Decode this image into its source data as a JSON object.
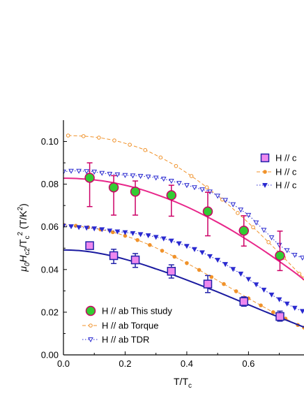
{
  "chart_data": {
    "type": "scatter",
    "xlabel": "T/T",
    "xlabel_sub": "c",
    "ylabel_parts": [
      "μ",
      "0",
      "H",
      "c2",
      "/T",
      "c",
      "2",
      " (T/K",
      "2",
      ")"
    ],
    "xlim": [
      0.0,
      0.78
    ],
    "ylim": [
      0.0,
      0.11
    ],
    "x_ticks": [
      "0.0",
      "0.2",
      "0.4",
      "0.6"
    ],
    "x_tick_values": [
      0.0,
      0.2,
      0.4,
      0.6
    ],
    "y_ticks": [
      "0.00",
      "0.02",
      "0.04",
      "0.06",
      "0.08",
      "0.10"
    ],
    "y_tick_values": [
      0.0,
      0.02,
      0.04,
      0.06,
      0.08,
      0.1
    ],
    "colors": {
      "ab_study_fill": "#33cc33",
      "ab_study_edge": "#cc0066",
      "ab_fit": "#e8268a",
      "c_study_fill": "#ee88ee",
      "c_study_edge": "#2222aa",
      "c_fit": "#1a1aa0",
      "torque": "#f0922a",
      "tdr": "#2a2ad0"
    },
    "legend_left": [
      {
        "label": "H // ab This study",
        "marker": "circle"
      },
      {
        "label": "H // ab Torque",
        "marker": "open-circle-dash"
      },
      {
        "label": "H // ab TDR",
        "marker": "open-triangle-dot"
      }
    ],
    "legend_right": [
      {
        "label": "H // c",
        "marker": "square"
      },
      {
        "label": "H // c",
        "marker": "filled-circle-dash"
      },
      {
        "label": "H // c",
        "marker": "filled-triangle-dot"
      }
    ],
    "series": [
      {
        "name": "H // ab This study",
        "style": "ab_study",
        "points": [
          {
            "x": 0.085,
            "y": 0.083,
            "lo": 0.0695,
            "hi": 0.09
          },
          {
            "x": 0.163,
            "y": 0.0785,
            "lo": 0.0655,
            "hi": 0.084
          },
          {
            "x": 0.233,
            "y": 0.0765,
            "lo": 0.0655,
            "hi": 0.0815
          },
          {
            "x": 0.35,
            "y": 0.0748,
            "lo": 0.065,
            "hi": 0.0795
          },
          {
            "x": 0.468,
            "y": 0.0672,
            "lo": 0.0558,
            "hi": 0.0762
          },
          {
            "x": 0.585,
            "y": 0.0582,
            "lo": 0.051,
            "hi": 0.0652
          },
          {
            "x": 0.702,
            "y": 0.0465,
            "lo": 0.0395,
            "hi": 0.058
          }
        ]
      },
      {
        "name": "H // c",
        "style": "c_study",
        "points": [
          {
            "x": 0.085,
            "y": 0.0512,
            "lo": 0.0495,
            "hi": 0.0528
          },
          {
            "x": 0.163,
            "y": 0.0465,
            "lo": 0.0428,
            "hi": 0.0495
          },
          {
            "x": 0.233,
            "y": 0.0445,
            "lo": 0.041,
            "hi": 0.0475
          },
          {
            "x": 0.35,
            "y": 0.0392,
            "lo": 0.036,
            "hi": 0.0422
          },
          {
            "x": 0.468,
            "y": 0.0332,
            "lo": 0.0292,
            "hi": 0.0372
          },
          {
            "x": 0.585,
            "y": 0.025,
            "lo": 0.0228,
            "hi": 0.0272
          },
          {
            "x": 0.702,
            "y": 0.018,
            "lo": 0.0158,
            "hi": 0.0205
          }
        ]
      },
      {
        "name": "H // ab Torque",
        "style": "ab_torque",
        "x": [
          0.015,
          0.065,
          0.115,
          0.165,
          0.215,
          0.265,
          0.315,
          0.365,
          0.415,
          0.465,
          0.515,
          0.565,
          0.615,
          0.665,
          0.715,
          0.765,
          0.78
        ],
        "y": [
          0.1028,
          0.1025,
          0.1018,
          0.1005,
          0.0985,
          0.096,
          0.0925,
          0.0885,
          0.0838,
          0.0785,
          0.0728,
          0.0665,
          0.0598,
          0.0528,
          0.0455,
          0.038,
          0.0358
        ]
      },
      {
        "name": "H // ab TDR",
        "style": "ab_tdr",
        "x": [
          0.0,
          0.025,
          0.05,
          0.075,
          0.1,
          0.125,
          0.15,
          0.175,
          0.2,
          0.225,
          0.25,
          0.275,
          0.3,
          0.325,
          0.35,
          0.375,
          0.4,
          0.425,
          0.45,
          0.475,
          0.5,
          0.525,
          0.55,
          0.575,
          0.6,
          0.625,
          0.65,
          0.675,
          0.7,
          0.725,
          0.75,
          0.775
        ],
        "y": [
          0.0858,
          0.0862,
          0.0862,
          0.086,
          0.0858,
          0.0852,
          0.0848,
          0.0845,
          0.0842,
          0.084,
          0.0838,
          0.0835,
          0.083,
          0.0825,
          0.0815,
          0.0805,
          0.0795,
          0.0785,
          0.0775,
          0.0765,
          0.0745,
          0.0725,
          0.0705,
          0.068,
          0.0655,
          0.062,
          0.0585,
          0.055,
          0.0515,
          0.049,
          0.0468,
          0.0455
        ]
      },
      {
        "name": "H // c Torque",
        "style": "c_torque",
        "x": [
          0.0,
          0.04,
          0.08,
          0.12,
          0.16,
          0.2,
          0.24,
          0.28,
          0.32,
          0.36,
          0.4,
          0.44,
          0.48,
          0.52,
          0.56,
          0.6,
          0.64,
          0.68,
          0.72,
          0.76,
          0.78
        ],
        "y": [
          0.061,
          0.0605,
          0.0598,
          0.0588,
          0.0575,
          0.0558,
          0.0538,
          0.0515,
          0.0488,
          0.046,
          0.043,
          0.0398,
          0.0365,
          0.0332,
          0.0298,
          0.0265,
          0.0232,
          0.02,
          0.017,
          0.014,
          0.0128
        ]
      },
      {
        "name": "H // c TDR",
        "style": "c_tdr",
        "x": [
          0.0,
          0.025,
          0.05,
          0.075,
          0.1,
          0.125,
          0.15,
          0.175,
          0.2,
          0.225,
          0.25,
          0.275,
          0.3,
          0.325,
          0.35,
          0.375,
          0.4,
          0.425,
          0.45,
          0.475,
          0.5,
          0.525,
          0.55,
          0.575,
          0.6,
          0.625,
          0.65,
          0.675,
          0.7,
          0.725,
          0.75,
          0.775
        ],
        "y": [
          0.0605,
          0.0602,
          0.0598,
          0.0595,
          0.0592,
          0.0588,
          0.0582,
          0.0578,
          0.0574,
          0.057,
          0.0565,
          0.056,
          0.0552,
          0.0545,
          0.0535,
          0.0522,
          0.051,
          0.0495,
          0.048,
          0.0462,
          0.0445,
          0.0425,
          0.0402,
          0.038,
          0.0355,
          0.033,
          0.0305,
          0.0282,
          0.026,
          0.024,
          0.022,
          0.0205
        ]
      },
      {
        "name": "H // ab fit",
        "style": "ab_fit",
        "x": [
          0.0,
          0.05,
          0.1,
          0.15,
          0.2,
          0.25,
          0.3,
          0.35,
          0.4,
          0.45,
          0.5,
          0.55,
          0.6,
          0.65,
          0.7,
          0.75,
          0.78
        ],
        "y": [
          0.0828,
          0.0826,
          0.082,
          0.081,
          0.0795,
          0.0776,
          0.0752,
          0.0725,
          0.0694,
          0.0659,
          0.0621,
          0.058,
          0.0535,
          0.0488,
          0.0438,
          0.0386,
          0.0352
        ]
      },
      {
        "name": "H // c fit",
        "style": "c_fit",
        "x": [
          0.0,
          0.05,
          0.1,
          0.15,
          0.2,
          0.25,
          0.3,
          0.35,
          0.4,
          0.45,
          0.5,
          0.55,
          0.6,
          0.65,
          0.7,
          0.75,
          0.78
        ],
        "y": [
          0.0492,
          0.0489,
          0.048,
          0.0466,
          0.0448,
          0.0427,
          0.0403,
          0.0378,
          0.0351,
          0.0323,
          0.0295,
          0.0265,
          0.0235,
          0.0205,
          0.0176,
          0.0147,
          0.013
        ]
      }
    ]
  }
}
